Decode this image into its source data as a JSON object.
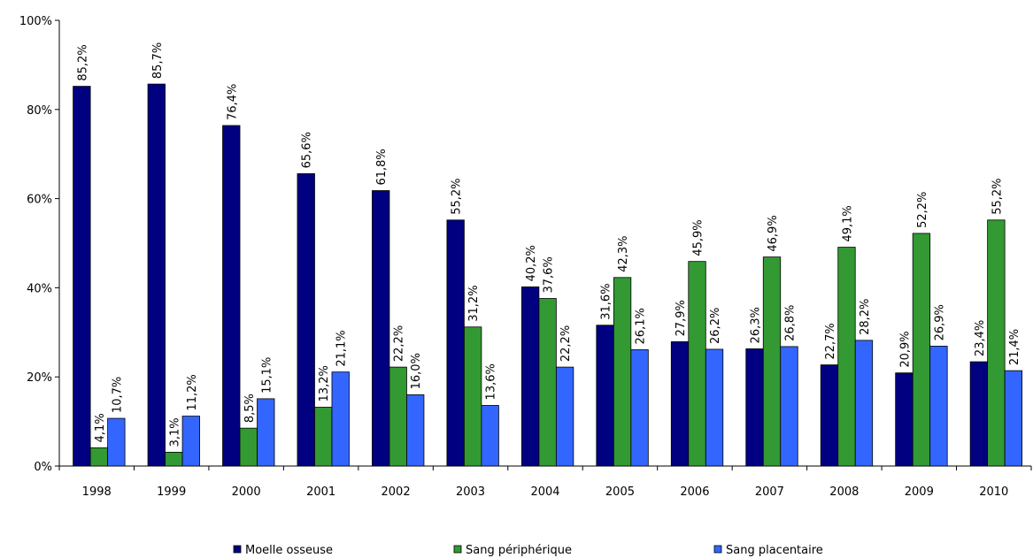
{
  "chart_data": {
    "type": "bar",
    "categories": [
      "1998",
      "1999",
      "2000",
      "2001",
      "2002",
      "2003",
      "2004",
      "2005",
      "2006",
      "2007",
      "2008",
      "2009",
      "2010"
    ],
    "series": [
      {
        "name": "Moelle osseuse",
        "color": "#000080",
        "values": [
          85.2,
          85.7,
          76.4,
          65.6,
          61.8,
          55.2,
          40.2,
          31.6,
          27.9,
          26.3,
          22.7,
          20.9,
          23.4
        ],
        "labels": [
          "85,2%",
          "85,7%",
          "76,4%",
          "65,6%",
          "61,8%",
          "55,2%",
          "40,2%",
          "31,6%",
          "27,9%",
          "26,3%",
          "22,7%",
          "20,9%",
          "23,4%"
        ]
      },
      {
        "name": "Sang périphérique",
        "color": "#339933",
        "values": [
          4.1,
          3.1,
          8.5,
          13.2,
          22.2,
          31.2,
          37.6,
          42.3,
          45.9,
          46.9,
          49.1,
          52.2,
          55.2
        ],
        "labels": [
          "4,1%",
          "3,1%",
          "8,5%",
          "13,2%",
          "22,2%",
          "31,2%",
          "37,6%",
          "42,3%",
          "45,9%",
          "46,9%",
          "49,1%",
          "52,2%",
          "55,2%"
        ]
      },
      {
        "name": "Sang placentaire",
        "color": "#3366ff",
        "values": [
          10.7,
          11.2,
          15.1,
          21.1,
          16.0,
          13.6,
          22.2,
          26.1,
          26.2,
          26.8,
          28.2,
          26.9,
          21.4
        ],
        "labels": [
          "10,7%",
          "11,2%",
          "15,1%",
          "21,1%",
          "16,0%",
          "13,6%",
          "22,2%",
          "26,1%",
          "26,2%",
          "26,8%",
          "28,2%",
          "26,9%",
          "21,4%"
        ]
      }
    ],
    "ylim": [
      0,
      100
    ],
    "yticks": [
      0,
      20,
      40,
      60,
      80,
      100
    ],
    "ytick_labels": [
      "0%",
      "20%",
      "40%",
      "60%",
      "80%",
      "100%"
    ],
    "title": "",
    "xlabel": "",
    "ylabel": "",
    "grid": false,
    "legend_position": "bottom"
  }
}
